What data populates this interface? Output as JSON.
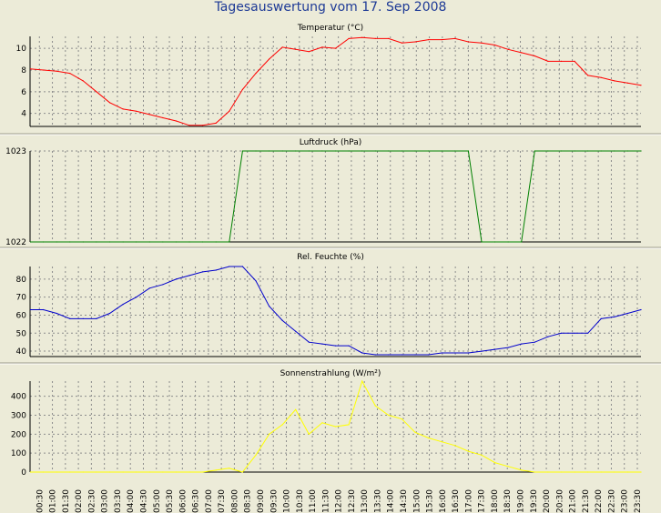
{
  "window": {
    "title": "Tagesauswertung vom 17. Sep 2008"
  },
  "colors": {
    "background": "#ecebd8",
    "plot_background": "#ecebd8",
    "grid": "#8c8c8c",
    "frame": "#000000",
    "title": "#1e3a96",
    "temperature_line": "#ff0000",
    "pressure_line": "#008000",
    "humidity_line": "#0000cc",
    "radiation_line": "#ffff00"
  },
  "chart_data": [
    {
      "type": "line",
      "title": "Temperatur (°C)",
      "xlabel": "",
      "ylabel": "",
      "x": [
        "00:30",
        "01:00",
        "01:30",
        "02:00",
        "02:30",
        "03:00",
        "03:30",
        "04:00",
        "04:30",
        "05:00",
        "05:30",
        "06:00",
        "06:30",
        "07:00",
        "07:30",
        "08:00",
        "08:30",
        "09:00",
        "09:30",
        "10:00",
        "10:30",
        "11:00",
        "11:30",
        "12:00",
        "12:30",
        "13:00",
        "13:30",
        "14:00",
        "14:30",
        "15:00",
        "15:30",
        "16:00",
        "16:30",
        "17:00",
        "17:30",
        "18:00",
        "18:30",
        "19:00",
        "19:30",
        "20:00",
        "20:30",
        "21:00",
        "21:30",
        "22:00",
        "22:30",
        "23:00",
        "23:30"
      ],
      "ylim": [
        2.8,
        11.1
      ],
      "yticks": [
        4,
        6,
        8,
        10
      ],
      "grid": true,
      "series": [
        {
          "name": "",
          "color_key": "temperature_line",
          "values": [
            8.1,
            8.0,
            7.9,
            7.7,
            7.0,
            6.0,
            5.0,
            4.4,
            4.2,
            3.9,
            3.6,
            3.3,
            2.9,
            2.9,
            3.1,
            4.2,
            6.2,
            7.7,
            9.0,
            10.1,
            9.9,
            9.7,
            10.1,
            10.0,
            10.9,
            11.0,
            10.9,
            10.9,
            10.5,
            10.6,
            10.8,
            10.8,
            10.9,
            10.6,
            10.5,
            10.3,
            9.9,
            9.6,
            9.3,
            8.8,
            8.8,
            8.8,
            7.5,
            7.3,
            7.0,
            6.8,
            6.6
          ]
        }
      ]
    },
    {
      "type": "line",
      "title": "Luftdruck (hPa)",
      "xlabel": "",
      "ylabel": "",
      "x": [
        "00:30",
        "01:00",
        "01:30",
        "02:00",
        "02:30",
        "03:00",
        "03:30",
        "04:00",
        "04:30",
        "05:00",
        "05:30",
        "06:00",
        "06:30",
        "07:00",
        "07:30",
        "08:00",
        "08:30",
        "09:00",
        "09:30",
        "10:00",
        "10:30",
        "11:00",
        "11:30",
        "12:00",
        "12:30",
        "13:00",
        "13:30",
        "14:00",
        "14:30",
        "15:00",
        "15:30",
        "16:00",
        "16:30",
        "17:00",
        "17:30",
        "18:00",
        "18:30",
        "19:00",
        "19:30",
        "20:00",
        "20:30",
        "21:00",
        "21:30",
        "22:00",
        "22:30",
        "23:00",
        "23:30"
      ],
      "ylim": [
        1022,
        1023
      ],
      "yticks": [
        1022,
        1023
      ],
      "grid": true,
      "series": [
        {
          "name": "",
          "color_key": "pressure_line",
          "values": [
            1022,
            1022,
            1022,
            1022,
            1022,
            1022,
            1022,
            1022,
            1022,
            1022,
            1022,
            1022,
            1022,
            1022,
            1022,
            1022,
            1023,
            1023,
            1023,
            1023,
            1023,
            1023,
            1023,
            1023,
            1023,
            1023,
            1023,
            1023,
            1023,
            1023,
            1023,
            1023,
            1023,
            1023,
            1022,
            1022,
            1022,
            1022,
            1023,
            1023,
            1023,
            1023,
            1023,
            1023,
            1023,
            1023,
            1023
          ]
        }
      ]
    },
    {
      "type": "line",
      "title": "Rel. Feuchte (%)",
      "xlabel": "",
      "ylabel": "",
      "x": [
        "00:30",
        "01:00",
        "01:30",
        "02:00",
        "02:30",
        "03:00",
        "03:30",
        "04:00",
        "04:30",
        "05:00",
        "05:30",
        "06:00",
        "06:30",
        "07:00",
        "07:30",
        "08:00",
        "08:30",
        "09:00",
        "09:30",
        "10:00",
        "10:30",
        "11:00",
        "11:30",
        "12:00",
        "12:30",
        "13:00",
        "13:30",
        "14:00",
        "14:30",
        "15:00",
        "15:30",
        "16:00",
        "16:30",
        "17:00",
        "17:30",
        "18:00",
        "18:30",
        "19:00",
        "19:30",
        "20:00",
        "20:30",
        "21:00",
        "21:30",
        "22:00",
        "22:30",
        "23:00",
        "23:30"
      ],
      "ylim": [
        37,
        87
      ],
      "yticks": [
        40,
        50,
        60,
        70,
        80
      ],
      "grid": true,
      "series": [
        {
          "name": "",
          "color_key": "humidity_line",
          "values": [
            63,
            63,
            61,
            58,
            58,
            58,
            61,
            66,
            70,
            75,
            77,
            80,
            82,
            84,
            85,
            87,
            87,
            79,
            65,
            57,
            51,
            45,
            44,
            43,
            43,
            39,
            38,
            38,
            38,
            38,
            38,
            39,
            39,
            39,
            40,
            41,
            42,
            44,
            45,
            48,
            50,
            50,
            50,
            58,
            59,
            61,
            63
          ]
        }
      ]
    },
    {
      "type": "line",
      "title": "Sonnenstrahlung (W/m²)",
      "xlabel": "",
      "ylabel": "",
      "x": [
        "00:30",
        "01:00",
        "01:30",
        "02:00",
        "02:30",
        "03:00",
        "03:30",
        "04:00",
        "04:30",
        "05:00",
        "05:30",
        "06:00",
        "06:30",
        "07:00",
        "07:30",
        "08:00",
        "08:30",
        "09:00",
        "09:30",
        "10:00",
        "10:30",
        "11:00",
        "11:30",
        "12:00",
        "12:30",
        "13:00",
        "13:30",
        "14:00",
        "14:30",
        "15:00",
        "15:30",
        "16:00",
        "16:30",
        "17:00",
        "17:30",
        "18:00",
        "18:30",
        "19:00",
        "19:30",
        "20:00",
        "20:30",
        "21:00",
        "21:30",
        "22:00",
        "22:30",
        "23:00",
        "23:30"
      ],
      "ylim": [
        0,
        480
      ],
      "yticks": [
        0,
        100,
        200,
        300,
        400
      ],
      "grid": true,
      "series": [
        {
          "name": "",
          "color_key": "radiation_line",
          "values": [
            0,
            0,
            0,
            0,
            0,
            0,
            0,
            0,
            0,
            0,
            0,
            0,
            0,
            0,
            10,
            20,
            0,
            90,
            200,
            250,
            330,
            200,
            260,
            240,
            250,
            480,
            350,
            300,
            280,
            210,
            180,
            160,
            140,
            110,
            90,
            50,
            30,
            10,
            0,
            0,
            0,
            0,
            0,
            0,
            0,
            0,
            0
          ]
        }
      ]
    }
  ]
}
